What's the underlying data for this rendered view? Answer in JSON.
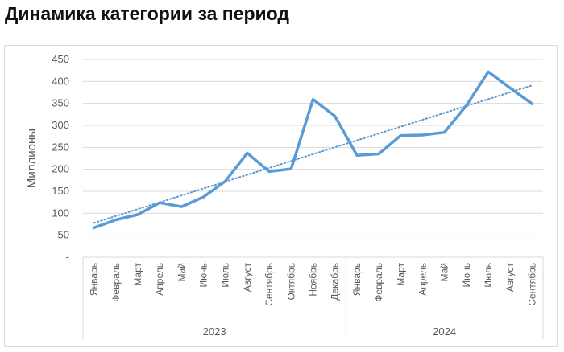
{
  "title": "Динамика категории за период",
  "chart_data": {
    "type": "line",
    "title": "Динамика категории за период",
    "ylabel": "Миллионы",
    "ylim": [
      0,
      450
    ],
    "yticks": [
      0,
      50,
      100,
      150,
      200,
      250,
      300,
      350,
      400,
      450
    ],
    "ytick_labels": [
      "-",
      "50",
      "100",
      "150",
      "200",
      "250",
      "300",
      "350",
      "400",
      "450"
    ],
    "grid": true,
    "legend": "none",
    "groups": [
      {
        "label": "2023",
        "categories": [
          "Январь",
          "Февраль",
          "Март",
          "Апрель",
          "Май",
          "Июнь",
          "Июль",
          "Август",
          "Сентябрь",
          "Октябрь",
          "Ноябрь",
          "Декабрь"
        ]
      },
      {
        "label": "2024",
        "categories": [
          "Январь",
          "Февраль",
          "Март",
          "Апрель",
          "Май",
          "Июнь",
          "Июль",
          "Август",
          "Сентябрь"
        ]
      }
    ],
    "series": [
      {
        "values": [
          67,
          85,
          97,
          124,
          115,
          137,
          173,
          237,
          195,
          201,
          359,
          321,
          232,
          235,
          277,
          278,
          284,
          345,
          422,
          385,
          349
        ],
        "color": "#5b9bd5"
      }
    ],
    "trendline": {
      "type": "linear",
      "style": "dotted",
      "color": "#5b9bd5",
      "start": 78,
      "end": 391
    }
  }
}
